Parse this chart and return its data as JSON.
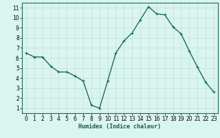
{
  "x": [
    0,
    1,
    2,
    3,
    4,
    5,
    6,
    7,
    8,
    9,
    10,
    11,
    12,
    13,
    14,
    15,
    16,
    17,
    18,
    19,
    20,
    21,
    22,
    23
  ],
  "y": [
    6.5,
    6.1,
    6.1,
    5.2,
    4.6,
    4.6,
    4.2,
    3.7,
    1.3,
    1.0,
    3.7,
    6.5,
    7.7,
    8.5,
    9.8,
    11.1,
    10.4,
    10.3,
    9.1,
    8.4,
    6.7,
    5.1,
    3.6,
    2.6
  ],
  "line_color": "#1a6b5a",
  "marker": "+",
  "marker_size": 3,
  "bg_color": "#d8f5f0",
  "grid_color": "#c8dcd8",
  "xlabel": "Humidex (Indice chaleur)",
  "xlim": [
    -0.5,
    23.5
  ],
  "ylim": [
    0.5,
    11.5
  ],
  "yticks": [
    1,
    2,
    3,
    4,
    5,
    6,
    7,
    8,
    9,
    10,
    11
  ],
  "xticks": [
    0,
    1,
    2,
    3,
    4,
    5,
    6,
    7,
    8,
    9,
    10,
    11,
    12,
    13,
    14,
    15,
    16,
    17,
    18,
    19,
    20,
    21,
    22,
    23
  ],
  "xlabel_fontsize": 6,
  "tick_fontsize": 5.5,
  "line_width": 1.0,
  "spine_color": "#1a6b5a"
}
